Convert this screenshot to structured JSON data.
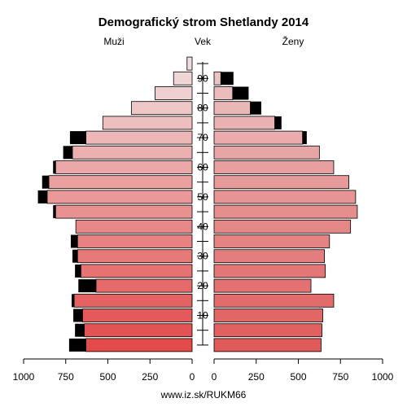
{
  "chart_data": {
    "type": "bar",
    "title": "Demografický strom Shetlandy 2014",
    "left_label": "Muži",
    "center_label": "Vek",
    "right_label": "Ženy",
    "footer": "www.iz.sk/RUKM66",
    "age_ticks": [
      "90",
      "80",
      "70",
      "60",
      "50",
      "40",
      "30",
      "20",
      "10"
    ],
    "x_ticks_left": [
      "1000",
      "750",
      "500",
      "250",
      "0"
    ],
    "x_ticks_right": [
      "0",
      "250",
      "500",
      "750",
      "1000"
    ],
    "xlim": [
      0,
      1000
    ],
    "series": [
      {
        "name": "Muži",
        "base": [
          630,
          640,
          650,
          700,
          570,
          660,
          680,
          680,
          690,
          810,
          860,
          850,
          810,
          710,
          630,
          530,
          360,
          220,
          110,
          30
        ],
        "excess": [
          100,
          55,
          55,
          15,
          105,
          35,
          30,
          40,
          0,
          15,
          55,
          40,
          15,
          55,
          95,
          0,
          0,
          0,
          0,
          0
        ]
      },
      {
        "name": "Ženy",
        "base": [
          635,
          640,
          645,
          710,
          575,
          660,
          655,
          685,
          810,
          850,
          840,
          800,
          710,
          625,
          525,
          360,
          215,
          110,
          40,
          0
        ],
        "excess": [
          0,
          0,
          0,
          0,
          0,
          0,
          0,
          0,
          0,
          0,
          0,
          0,
          0,
          0,
          25,
          40,
          65,
          95,
          75,
          0
        ]
      }
    ]
  }
}
